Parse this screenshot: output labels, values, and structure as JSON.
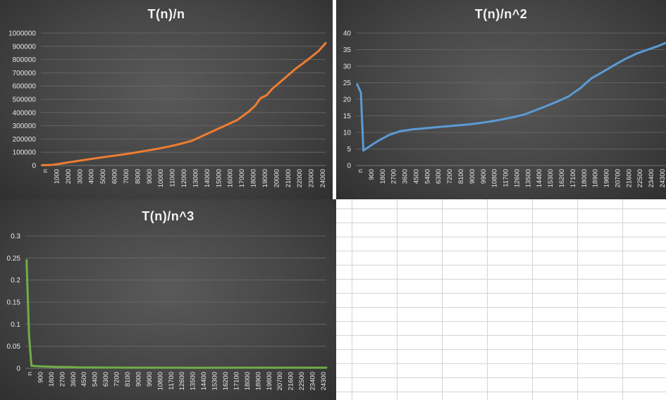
{
  "chart_data": [
    {
      "type": "line",
      "title": "T(n)/n",
      "color": "#ED7D31",
      "ylim": [
        0,
        1000000
      ],
      "yticks": [
        "0",
        "100000",
        "200000",
        "300000",
        "400000",
        "500000",
        "600000",
        "700000",
        "800000",
        "900000",
        "1000000"
      ],
      "xticks": [
        "n",
        "1000",
        "2000",
        "3000",
        "4000",
        "5000",
        "6000",
        "7000",
        "8000",
        "9000",
        "10000",
        "11000",
        "12000",
        "13000",
        "14000",
        "15000",
        "16000",
        "17000",
        "18000",
        "19000",
        "20000",
        "21000",
        "22000",
        "23000",
        "24000"
      ],
      "x_max": 24600,
      "series": [
        {
          "x": [
            100,
            1000,
            2000,
            3000,
            4000,
            5000,
            6000,
            7000,
            8000,
            9000,
            10000,
            11000,
            12000,
            13000,
            14000,
            15000,
            16000,
            17000,
            18000,
            18500,
            19000,
            19500,
            20000,
            21000,
            22000,
            23000,
            24000,
            24600
          ],
          "y": [
            2000,
            5000,
            18000,
            32000,
            45000,
            58000,
            70000,
            82000,
            95000,
            110000,
            125000,
            142000,
            162000,
            185000,
            225000,
            265000,
            305000,
            345000,
            410000,
            450000,
            510000,
            530000,
            580000,
            655000,
            730000,
            795000,
            865000,
            925000
          ]
        }
      ]
    },
    {
      "type": "line",
      "title": "T(n)/n^2",
      "color": "#5B9BD5",
      "ylim": [
        0,
        40
      ],
      "yticks": [
        "0",
        "5",
        "10",
        "15",
        "20",
        "25",
        "30",
        "35",
        "40"
      ],
      "xticks": [
        "n",
        "900",
        "1800",
        "2700",
        "3600",
        "4500",
        "5400",
        "6300",
        "7200",
        "8100",
        "9000",
        "9900",
        "10800",
        "11700",
        "12600",
        "13500",
        "14400",
        "15300",
        "16200",
        "17100",
        "18000",
        "18900",
        "19800",
        "20700",
        "21600",
        "22500",
        "23400",
        "24300"
      ],
      "x_max": 24800,
      "series": [
        {
          "x": [
            100,
            400,
            600,
            900,
            1800,
            2700,
            3600,
            4500,
            5400,
            6300,
            7200,
            8100,
            9000,
            9900,
            10800,
            11700,
            12600,
            13500,
            14400,
            15300,
            16200,
            17100,
            18000,
            18900,
            19800,
            20700,
            21600,
            22500,
            23400,
            24300,
            24800
          ],
          "y": [
            24.5,
            22,
            4.5,
            5.3,
            7.5,
            9.3,
            10.4,
            10.9,
            11.2,
            11.5,
            11.8,
            12.1,
            12.4,
            12.8,
            13.3,
            13.9,
            14.6,
            15.4,
            16.7,
            18.0,
            19.4,
            21.0,
            23.4,
            26.4,
            28.3,
            30.3,
            32.2,
            33.8,
            35.0,
            36.2,
            37.0
          ]
        }
      ]
    },
    {
      "type": "line",
      "title": "T(n)/n^3",
      "color": "#70AD47",
      "ylim": [
        0,
        0.3
      ],
      "yticks": [
        "0",
        "0.05",
        "0.1",
        "0.15",
        "0.2",
        "0.25",
        "0.3"
      ],
      "xticks": [
        "n",
        "900",
        "1800",
        "2700",
        "3600",
        "4500",
        "5400",
        "6300",
        "7200",
        "8100",
        "9000",
        "9900",
        "10800",
        "11700",
        "12600",
        "13500",
        "14400",
        "15300",
        "16200",
        "17100",
        "18000",
        "18900",
        "19800",
        "20700",
        "21600",
        "22500",
        "23400",
        "24300"
      ],
      "x_max": 24800,
      "series": [
        {
          "x": [
            100,
            300,
            500,
            900,
            1800,
            2700,
            3600,
            4500,
            6300,
            9000,
            13500,
            18000,
            24800
          ],
          "y": [
            0.245,
            0.075,
            0.006,
            0.005,
            0.004,
            0.003,
            0.003,
            0.002,
            0.0018,
            0.0015,
            0.0012,
            0.0014,
            0.0015
          ]
        }
      ]
    }
  ]
}
